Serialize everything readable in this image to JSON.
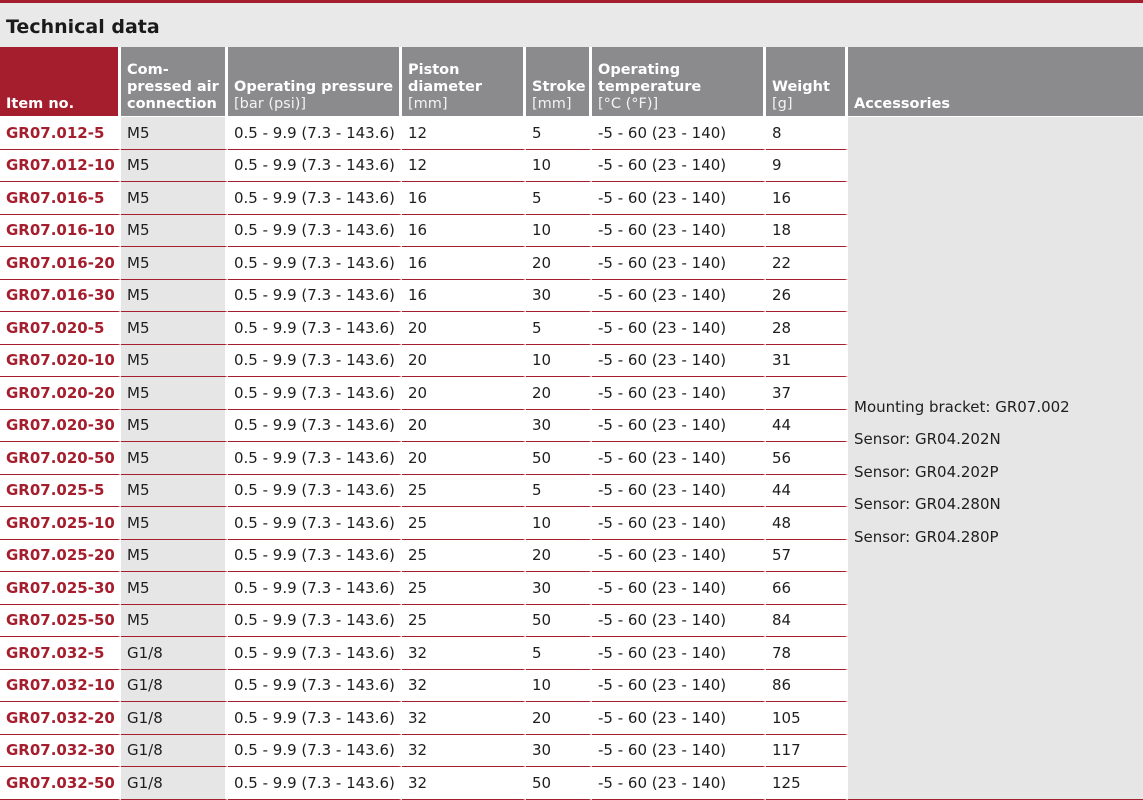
{
  "title": "Technical data",
  "headers": {
    "item": "Item no.",
    "conn": "Com-\npressed air\nconnection",
    "pressure": "Operating pressure",
    "pressure_unit": "[bar (psi)]",
    "piston": "Piston\ndiameter",
    "piston_unit": "[mm]",
    "stroke": "Stroke",
    "stroke_unit": "[mm]",
    "temp": "Operating\ntemperature",
    "temp_unit": "[°C (°F)]",
    "weight": "Weight",
    "weight_unit": "[g]",
    "accessories": "Accessories"
  },
  "rows": [
    {
      "item": "GR07.012-5",
      "conn": "M5",
      "pressure": "0.5 - 9.9 (7.3 - 143.6)",
      "piston": "12",
      "stroke": "5",
      "temp": "-5 - 60 (23 - 140)",
      "weight": "8"
    },
    {
      "item": "GR07.012-10",
      "conn": "M5",
      "pressure": "0.5 - 9.9 (7.3 - 143.6)",
      "piston": "12",
      "stroke": "10",
      "temp": "-5 - 60 (23 - 140)",
      "weight": "9"
    },
    {
      "item": "GR07.016-5",
      "conn": "M5",
      "pressure": "0.5 - 9.9 (7.3 - 143.6)",
      "piston": "16",
      "stroke": "5",
      "temp": "-5 - 60 (23 - 140)",
      "weight": "16"
    },
    {
      "item": "GR07.016-10",
      "conn": "M5",
      "pressure": "0.5 - 9.9 (7.3 - 143.6)",
      "piston": "16",
      "stroke": "10",
      "temp": "-5 - 60 (23 - 140)",
      "weight": "18"
    },
    {
      "item": "GR07.016-20",
      "conn": "M5",
      "pressure": "0.5 - 9.9 (7.3 - 143.6)",
      "piston": "16",
      "stroke": "20",
      "temp": "-5 - 60 (23 - 140)",
      "weight": "22"
    },
    {
      "item": "GR07.016-30",
      "conn": "M5",
      "pressure": "0.5 - 9.9 (7.3 - 143.6)",
      "piston": "16",
      "stroke": "30",
      "temp": "-5 - 60 (23 - 140)",
      "weight": "26"
    },
    {
      "item": "GR07.020-5",
      "conn": "M5",
      "pressure": "0.5 - 9.9 (7.3 - 143.6)",
      "piston": "20",
      "stroke": "5",
      "temp": "-5 - 60 (23 - 140)",
      "weight": "28"
    },
    {
      "item": "GR07.020-10",
      "conn": "M5",
      "pressure": "0.5 - 9.9 (7.3 - 143.6)",
      "piston": "20",
      "stroke": "10",
      "temp": "-5 - 60 (23 - 140)",
      "weight": "31"
    },
    {
      "item": "GR07.020-20",
      "conn": "M5",
      "pressure": "0.5 - 9.9 (7.3 - 143.6)",
      "piston": "20",
      "stroke": "20",
      "temp": "-5 - 60 (23 - 140)",
      "weight": "37"
    },
    {
      "item": "GR07.020-30",
      "conn": "M5",
      "pressure": "0.5 - 9.9 (7.3 - 143.6)",
      "piston": "20",
      "stroke": "30",
      "temp": "-5 - 60 (23 - 140)",
      "weight": "44"
    },
    {
      "item": "GR07.020-50",
      "conn": "M5",
      "pressure": "0.5 - 9.9 (7.3 - 143.6)",
      "piston": "20",
      "stroke": "50",
      "temp": "-5 - 60 (23 - 140)",
      "weight": "56"
    },
    {
      "item": "GR07.025-5",
      "conn": "M5",
      "pressure": "0.5 - 9.9 (7.3 - 143.6)",
      "piston": "25",
      "stroke": "5",
      "temp": "-5 - 60 (23 - 140)",
      "weight": "44"
    },
    {
      "item": "GR07.025-10",
      "conn": "M5",
      "pressure": "0.5 - 9.9 (7.3 - 143.6)",
      "piston": "25",
      "stroke": "10",
      "temp": "-5 - 60 (23 - 140)",
      "weight": "48"
    },
    {
      "item": "GR07.025-20",
      "conn": "M5",
      "pressure": "0.5 - 9.9 (7.3 - 143.6)",
      "piston": "25",
      "stroke": "20",
      "temp": "-5 - 60 (23 - 140)",
      "weight": "57"
    },
    {
      "item": "GR07.025-30",
      "conn": "M5",
      "pressure": "0.5 - 9.9 (7.3 - 143.6)",
      "piston": "25",
      "stroke": "30",
      "temp": "-5 - 60 (23 - 140)",
      "weight": "66"
    },
    {
      "item": "GR07.025-50",
      "conn": "M5",
      "pressure": "0.5 - 9.9 (7.3 - 143.6)",
      "piston": "25",
      "stroke": "50",
      "temp": "-5 - 60 (23 - 140)",
      "weight": "84"
    },
    {
      "item": "GR07.032-5",
      "conn": "G1/8",
      "pressure": "0.5 - 9.9 (7.3 - 143.6)",
      "piston": "32",
      "stroke": "5",
      "temp": "-5 - 60 (23 - 140)",
      "weight": "78"
    },
    {
      "item": "GR07.032-10",
      "conn": "G1/8",
      "pressure": "0.5 - 9.9 (7.3 - 143.6)",
      "piston": "32",
      "stroke": "10",
      "temp": "-5 - 60 (23 - 140)",
      "weight": "86"
    },
    {
      "item": "GR07.032-20",
      "conn": "G1/8",
      "pressure": "0.5 - 9.9 (7.3 - 143.6)",
      "piston": "32",
      "stroke": "20",
      "temp": "-5 - 60 (23 - 140)",
      "weight": "105"
    },
    {
      "item": "GR07.032-30",
      "conn": "G1/8",
      "pressure": "0.5 - 9.9 (7.3 - 143.6)",
      "piston": "32",
      "stroke": "30",
      "temp": "-5 - 60 (23 - 140)",
      "weight": "117"
    },
    {
      "item": "GR07.032-50",
      "conn": "G1/8",
      "pressure": "0.5 - 9.9 (7.3 - 143.6)",
      "piston": "32",
      "stroke": "50",
      "temp": "-5 - 60 (23 - 140)",
      "weight": "125"
    }
  ],
  "accessories": [
    "Mounting bracket: GR07.002",
    "Sensor: GR04.202N",
    "Sensor: GR04.202P",
    "Sensor: GR04.280N",
    "Sensor: GR04.280P"
  ],
  "colors": {
    "brand_red": "#a51e2d",
    "header_gray": "#8b8b8d",
    "band_gray": "#e9e9ea",
    "cell_gray": "#e6e6e7"
  }
}
